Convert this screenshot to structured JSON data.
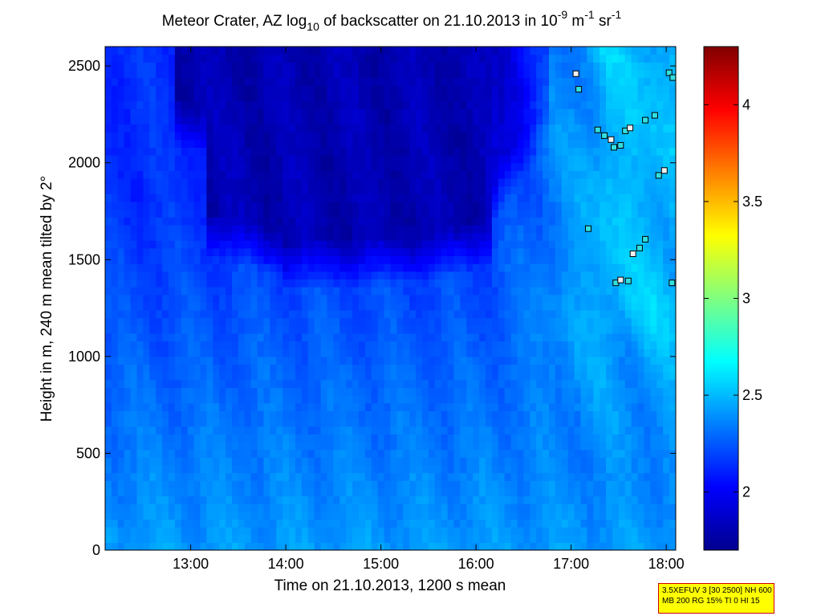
{
  "chart_data": {
    "type": "heatmap",
    "title": {
      "p1": "Meteor Crater, AZ log",
      "sub": "10",
      "p2": " of backscatter on 21.10.2013 in 10",
      "sup1": "-9",
      "p3": " m",
      "sup2": "-1",
      "p4": " sr",
      "sup3": "-1"
    },
    "xlabel": "Time on 21.10.2013, 1200 s mean",
    "ylabel": "Height in m, 240 m mean tilted by 2°",
    "x_domain_hours": [
      12.1,
      18.1
    ],
    "x_ticks": [
      {
        "v": 13,
        "label": "13:00"
      },
      {
        "v": 14,
        "label": "14:00"
      },
      {
        "v": 15,
        "label": "15:00"
      },
      {
        "v": 16,
        "label": "16:00"
      },
      {
        "v": 17,
        "label": "17:00"
      },
      {
        "v": 18,
        "label": "18:00"
      }
    ],
    "ylim": [
      0,
      2600
    ],
    "y_ticks": [
      0,
      500,
      1000,
      1500,
      2000,
      2500
    ],
    "colorbar": {
      "range": [
        1.7,
        4.3
      ],
      "ticks": [
        2,
        2.5,
        3,
        3.5,
        4
      ],
      "colormap": "jet"
    },
    "field": {
      "base_low": 2.42,
      "base_high": 2.14,
      "dark_value": 1.83,
      "late_value": 2.5,
      "dark_region_start_hour": 12.8,
      "late_increase_start_hour": 16.1
    },
    "markers": [
      {
        "x": 17.05,
        "y": 2460
      },
      {
        "x": 17.08,
        "y": 2380
      },
      {
        "x": 17.28,
        "y": 2170
      },
      {
        "x": 17.35,
        "y": 2140
      },
      {
        "x": 17.42,
        "y": 2120
      },
      {
        "x": 17.45,
        "y": 2080
      },
      {
        "x": 17.52,
        "y": 2090
      },
      {
        "x": 17.57,
        "y": 2165
      },
      {
        "x": 17.62,
        "y": 2180
      },
      {
        "x": 17.78,
        "y": 2220
      },
      {
        "x": 17.88,
        "y": 2245
      },
      {
        "x": 17.92,
        "y": 1935
      },
      {
        "x": 17.98,
        "y": 1960
      },
      {
        "x": 18.03,
        "y": 2465
      },
      {
        "x": 18.07,
        "y": 2440
      },
      {
        "x": 17.18,
        "y": 1660
      },
      {
        "x": 17.65,
        "y": 1530
      },
      {
        "x": 17.72,
        "y": 1560
      },
      {
        "x": 17.78,
        "y": 1605
      },
      {
        "x": 17.47,
        "y": 1380
      },
      {
        "x": 17.52,
        "y": 1395
      },
      {
        "x": 17.6,
        "y": 1390
      },
      {
        "x": 18.06,
        "y": 1380
      }
    ]
  },
  "info_box": {
    "line1": "3.5XEFUV 3 [30 2500] NH 600",
    "line2": "MB 200 RG 15% TI 0 HI 15"
  }
}
